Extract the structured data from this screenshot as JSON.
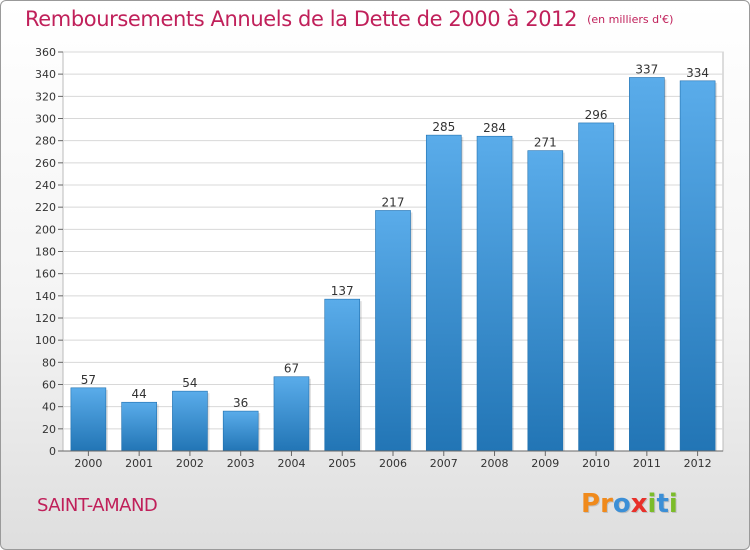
{
  "title": "Remboursements Annuels de la Dette de 2000 à 2012",
  "unit": "(en milliers d'€)",
  "commune": "SAINT-AMAND",
  "brand": {
    "text": "Proxiti",
    "letters": [
      {
        "ch": "P",
        "color": "#f08a1c"
      },
      {
        "ch": "r",
        "color": "#f08a1c"
      },
      {
        "ch": "o",
        "color": "#3c8fd6"
      },
      {
        "ch": "x",
        "color": "#e8302a"
      },
      {
        "ch": "i",
        "color": "#7cbc2a"
      },
      {
        "ch": "t",
        "color": "#3c8fd6"
      },
      {
        "ch": "i",
        "color": "#7cbc2a"
      }
    ]
  },
  "colors": {
    "bar_top": "#5aacea",
    "bar_bottom": "#2275b5",
    "accent": "#c0205a"
  },
  "chart_data": {
    "type": "bar",
    "categories": [
      "2000",
      "2001",
      "2002",
      "2003",
      "2004",
      "2005",
      "2006",
      "2007",
      "2008",
      "2009",
      "2010",
      "2011",
      "2012"
    ],
    "values": [
      57,
      44,
      54,
      36,
      67,
      137,
      217,
      285,
      284,
      271,
      296,
      337,
      334
    ],
    "ylim": [
      0,
      360
    ],
    "yticks": [
      0,
      20,
      40,
      60,
      80,
      100,
      120,
      140,
      160,
      180,
      200,
      220,
      240,
      260,
      280,
      300,
      320,
      340,
      360
    ],
    "grid": true
  }
}
